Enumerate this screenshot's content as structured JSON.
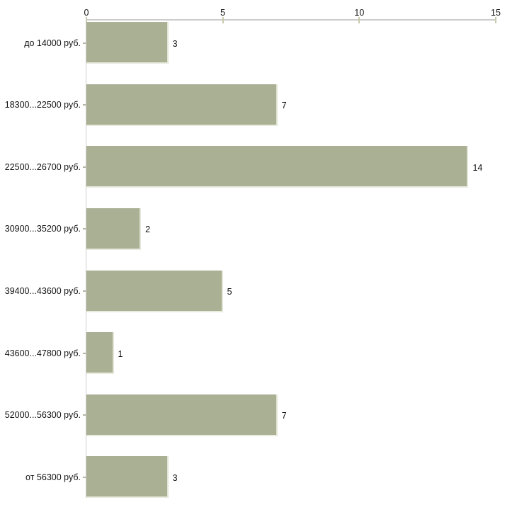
{
  "chart_data": {
    "type": "bar",
    "orientation": "horizontal",
    "title": "",
    "xlabel": "",
    "ylabel": "",
    "categories": [
      "до 14000 руб.",
      "18300...22500 руб.",
      "22500...26700 руб.",
      "30900...35200 руб.",
      "39400...43600 руб.",
      "43600...47800 руб.",
      "52000...56300 руб.",
      "от 56300 руб."
    ],
    "values": [
      3,
      7,
      14,
      2,
      5,
      1,
      7,
      3
    ],
    "value_labels": [
      "3",
      "7",
      "14",
      "2",
      "5",
      "1",
      "7",
      "3"
    ],
    "x_ticks": [
      0,
      5,
      10,
      15
    ],
    "xlim": [
      0,
      15
    ],
    "grid": false,
    "legend": false,
    "x_axis_position": "top",
    "colors": {
      "bar": "#a9b094",
      "bar_edge_light": "#e9ebdf",
      "axis_line": "#cccccc",
      "axis_tick": "#c9c9ab",
      "category_tick": "#b3b3a1",
      "text": "#111111",
      "background": "#ffffff"
    }
  }
}
